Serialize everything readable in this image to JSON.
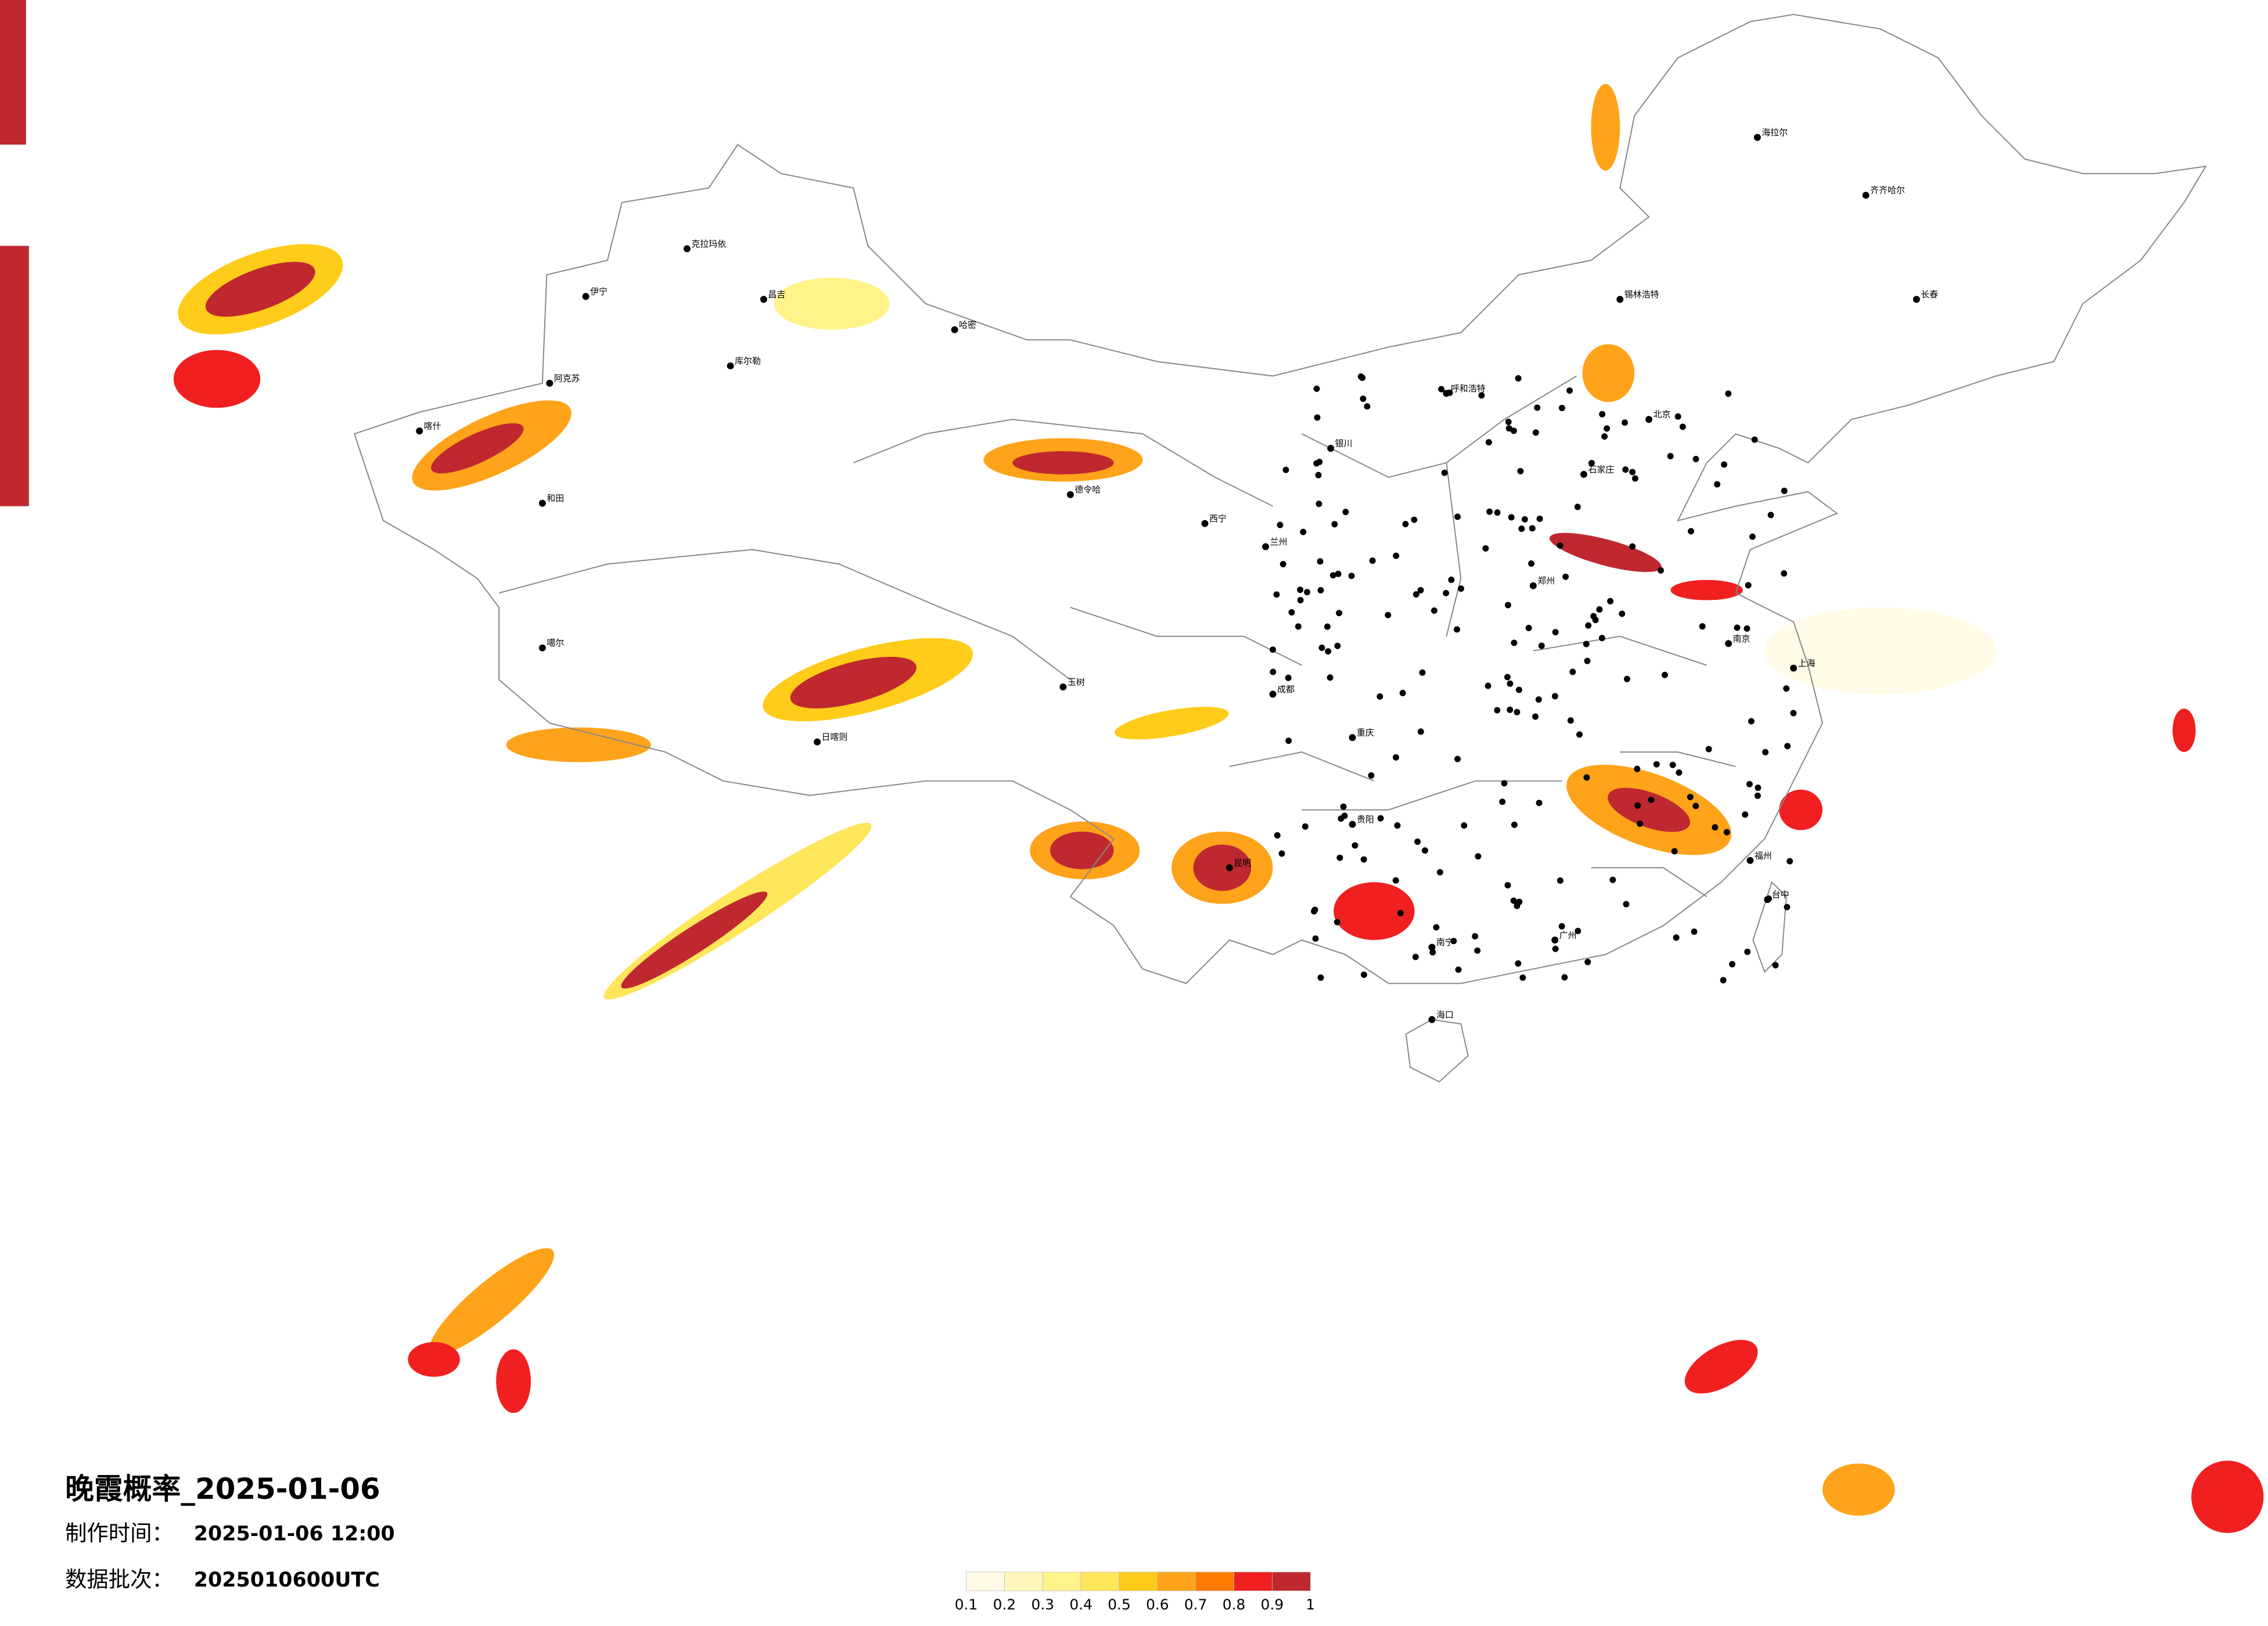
{
  "title": "晚霞概率_2025-01-06",
  "production_time": {
    "label": "制作时间：",
    "value": "2025-01-06 12:00"
  },
  "data_batch": {
    "label": "数据批次：",
    "value": "2025010600UTC"
  },
  "legend": {
    "bounds": [
      0.1,
      0.2,
      0.3,
      0.4,
      0.5,
      0.6,
      0.7,
      0.8,
      0.9,
      1
    ],
    "colors": [
      "#fffbe6",
      "#fff7bb",
      "#fff38a",
      "#ffe65a",
      "#ffcc1a",
      "#ffa31a",
      "#ff7a00",
      "#f02020",
      "#c0282f"
    ]
  },
  "cities": [
    "克拉玛依",
    "阿克苏",
    "和田",
    "库尔勒",
    "哈密",
    "伊宁",
    "喀什",
    "昌吉",
    "噶尔",
    "日喀则",
    "玉树",
    "德令哈",
    "西宁",
    "兰州",
    "银川",
    "呼和浩特",
    "锡林浩特",
    "海拉尔",
    "齐齐哈尔",
    "长春",
    "北京",
    "石家庄",
    "郑州",
    "南京",
    "上海",
    "福州",
    "广州",
    "南宁",
    "昆明",
    "贵阳",
    "重庆",
    "成都",
    "海口",
    "台中"
  ]
}
